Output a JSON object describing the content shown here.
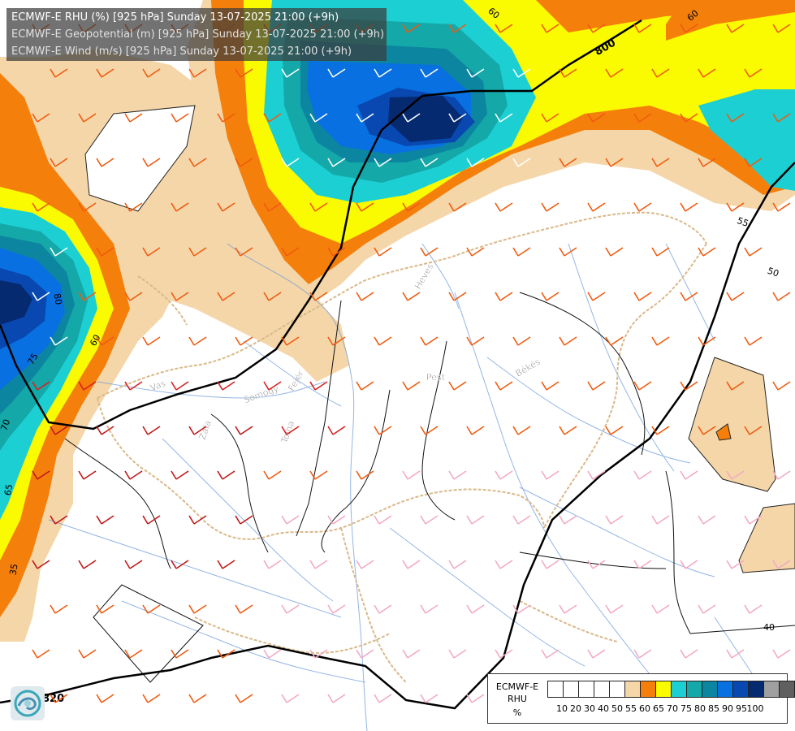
{
  "title": {
    "rhu": "ECMWF-E RHU (%) [925 hPa] Sunday 13-07-2025 21:00 (+9h)",
    "geopotential": "ECMWF-E Geopotential (m) [925 hPa] Sunday 13-07-2025 21:00 (+9h)",
    "wind": "ECMWF-E Wind (m/s) [925 hPa] Sunday 13-07-2025 21:00 (+9h)"
  },
  "legend": {
    "model": "ECMWF-E",
    "variable": "RHU",
    "unit": "%",
    "levels": [
      "10",
      "20",
      "30",
      "40",
      "50",
      "55",
      "60",
      "65",
      "70",
      "75",
      "80",
      "85",
      "90",
      "95",
      "100"
    ],
    "colors": [
      "#ffffff",
      "#ffffff",
      "#ffffff",
      "#ffffff",
      "#ffffff",
      "#f5d6a8",
      "#f57f0b",
      "#fafa00",
      "#1ccfd2",
      "#15a8a8",
      "#0c86a0",
      "#0870e0",
      "#0848b0",
      "#062a70",
      "#a0a0a0",
      "#606060"
    ]
  },
  "map": {
    "geopotential_labels": [
      "800",
      "820"
    ],
    "rhu_labels": [
      "40",
      "50",
      "55",
      "60",
      "65",
      "70",
      "75",
      "80",
      "30",
      "35"
    ],
    "place_labels": [
      "Vas",
      "Zala",
      "Somogy",
      "Tolna",
      "Pest",
      "Békés",
      "Heves",
      "Fejér"
    ]
  },
  "colors": {
    "rhu_55": "#f5d6a8",
    "rhu_60": "#f57f0b",
    "rhu_65": "#fafa00",
    "rhu_70": "#1ccfd2",
    "rhu_75": "#15a8a8",
    "rhu_80": "#0c86a0",
    "rhu_85": "#0870e0",
    "rhu_90": "#0848b0",
    "rhu_95": "#062a70"
  }
}
